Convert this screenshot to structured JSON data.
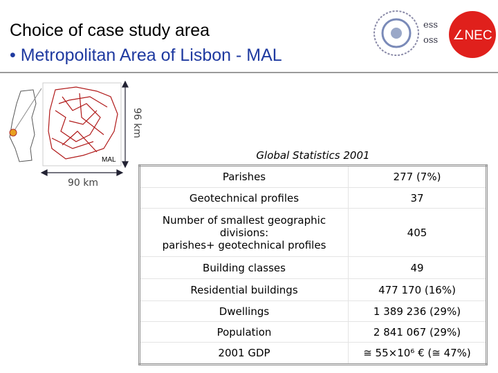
{
  "header": {
    "title": "Choice of case study area",
    "subtitle": "• Metropolitan Area of Lisbon - MAL"
  },
  "logos": {
    "emblem_top": "ess",
    "emblem_bottom": "oss",
    "lnec": "∠NEC"
  },
  "map": {
    "label": "MAL",
    "height_label": "96 km",
    "width_label": "90 km"
  },
  "table": {
    "caption": "Global Statistics 2001",
    "rows": [
      [
        [
          "Parishes"
        ],
        "277 (7%)"
      ],
      [
        [
          "Geotechnical profiles"
        ],
        "37"
      ],
      [
        [
          "Number of smallest geographic",
          "divisions:",
          "parishes+ geotechnical profiles"
        ],
        "405"
      ],
      [
        [
          "Building classes"
        ],
        "49"
      ],
      [
        [
          "Residential buildings"
        ],
        "477 170 (16%)"
      ],
      [
        [
          "Dwellings"
        ],
        "1 389 236 (29%)"
      ],
      [
        [
          "Population"
        ],
        "2 841 067 (29%)"
      ],
      [
        [
          "2001 GDP"
        ],
        "≅ 55×10⁶ € (≅ 47%)"
      ]
    ]
  }
}
